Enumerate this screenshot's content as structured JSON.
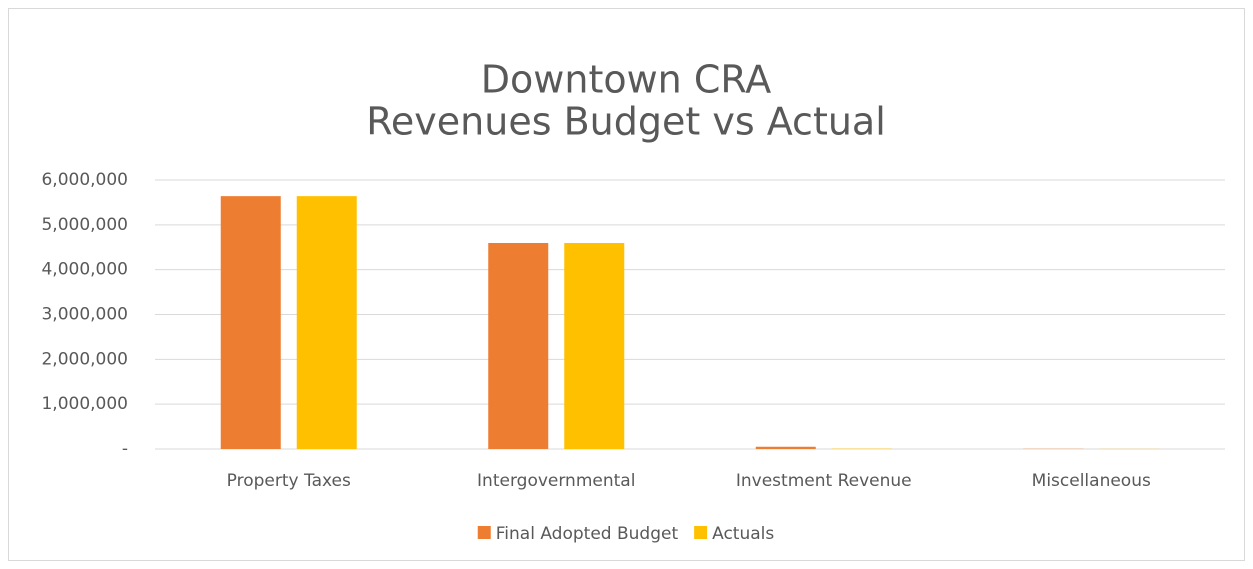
{
  "chart_data": {
    "type": "bar",
    "title": [
      "Downtown CRA",
      "Revenues Budget vs Actual"
    ],
    "categories": [
      "Property Taxes",
      "Intergovernmental",
      "Investment Revenue",
      "Miscellaneous"
    ],
    "series": [
      {
        "name": "Final Adopted Budget",
        "color": "#ED7D31",
        "values": [
          5640000,
          4595000,
          50000,
          5000
        ]
      },
      {
        "name": "Actuals",
        "color": "#FFC000",
        "values": [
          5640000,
          4595000,
          8000,
          3000
        ]
      }
    ],
    "ylim": [
      0,
      6000000
    ],
    "yticks": [
      {
        "value": 0,
        "label": "-"
      },
      {
        "value": 1000000,
        "label": "1,000,000"
      },
      {
        "value": 2000000,
        "label": "2,000,000"
      },
      {
        "value": 3000000,
        "label": "3,000,000"
      },
      {
        "value": 4000000,
        "label": "4,000,000"
      },
      {
        "value": 5000000,
        "label": "5,000,000"
      },
      {
        "value": 6000000,
        "label": "6,000,000"
      }
    ],
    "grid": true,
    "legend": "bottom"
  }
}
